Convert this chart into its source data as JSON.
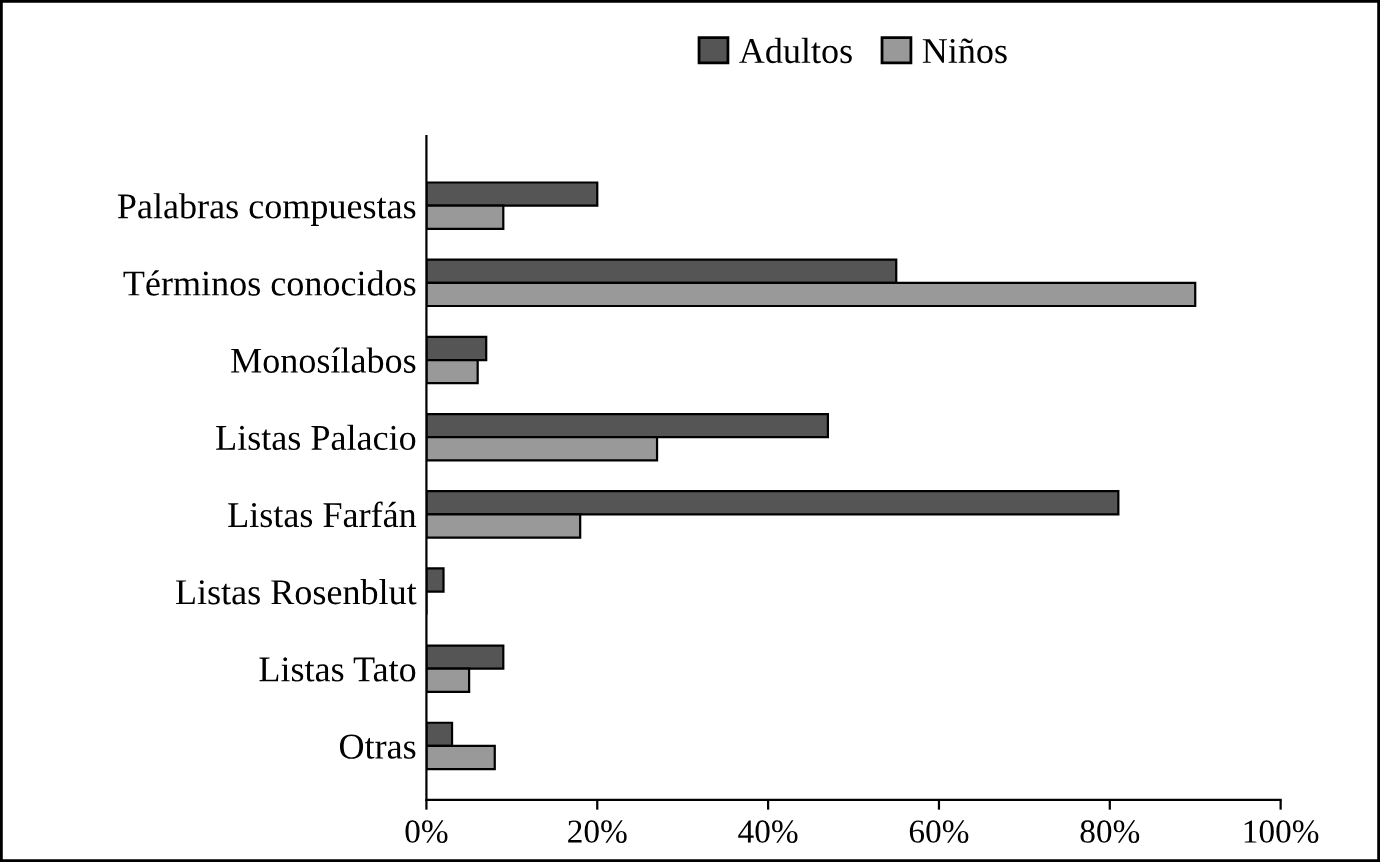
{
  "chart_data": {
    "type": "bar",
    "orientation": "horizontal",
    "categories": [
      "Palabras compuestas",
      "Términos conocidos",
      "Monosílabos",
      "Listas Palacio",
      "Listas Farfán",
      "Listas Rosenblut",
      "Listas Tato",
      "Otras"
    ],
    "series": [
      {
        "name": "Adultos",
        "color": "#555555",
        "values": [
          20,
          55,
          7,
          47,
          81,
          2,
          9,
          3
        ]
      },
      {
        "name": "Niños",
        "color": "#999999",
        "values": [
          9,
          90,
          6,
          27,
          18,
          0,
          5,
          8
        ]
      }
    ],
    "xlim": [
      0,
      100
    ],
    "xticks": [
      {
        "value": 0,
        "label": "0%"
      },
      {
        "value": 20,
        "label": "20%"
      },
      {
        "value": 40,
        "label": "40%"
      },
      {
        "value": 60,
        "label": "60%"
      },
      {
        "value": 80,
        "label": "80%"
      },
      {
        "value": 100,
        "label": "100%"
      }
    ],
    "legend": "top",
    "grid": false
  }
}
